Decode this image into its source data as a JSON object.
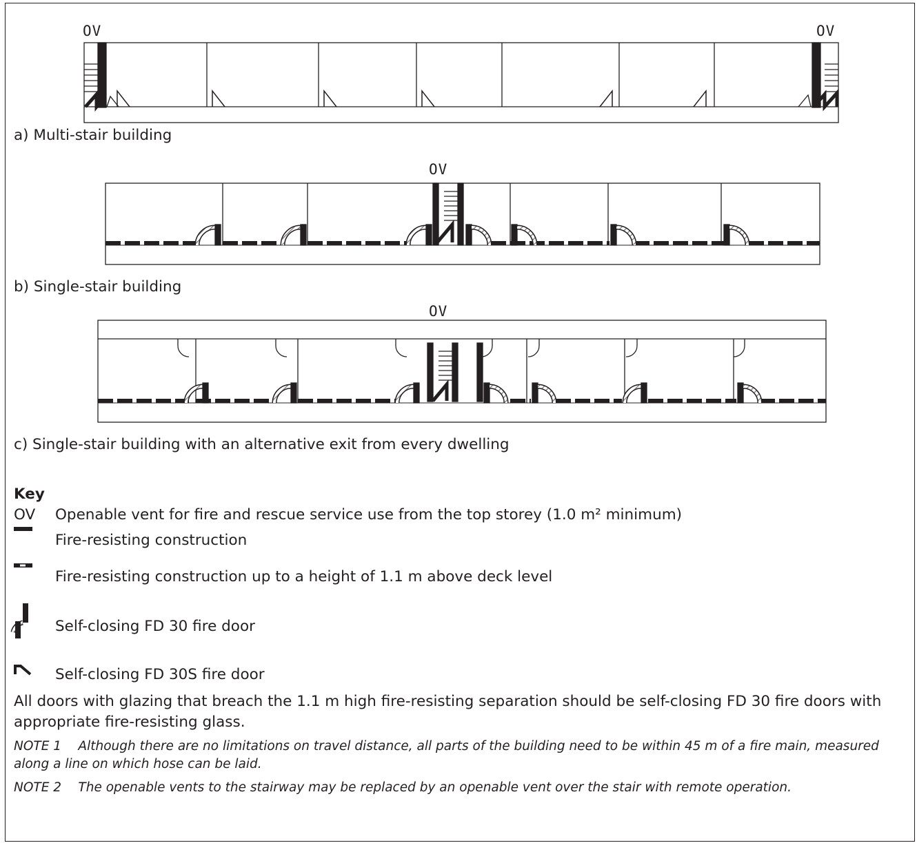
{
  "diagrams": {
    "a": {
      "caption": "a) Multi-stair building",
      "ov_left": "OV",
      "ov_right": "OV"
    },
    "b": {
      "caption": "b) Single-stair building",
      "ov": "OV"
    },
    "c": {
      "caption": "c) Single-stair building with an alternative exit from every dwelling",
      "ov": "OV"
    }
  },
  "key": {
    "title": "Key",
    "items": [
      {
        "symbol": "OV",
        "text": "Openable vent for fire and rescue service use from the top storey (1.0 m² minimum)"
      },
      {
        "symbol": "solid-bar",
        "text": "Fire-resisting construction"
      },
      {
        "symbol": "dashed-bar",
        "text": "Fire-resisting construction up to a height of 1.1 m above deck level"
      },
      {
        "symbol": "fd30-door",
        "text": "Self-closing FD 30 fire door"
      },
      {
        "symbol": "fd30s-door",
        "text": "Self-closing FD 30S fire door"
      }
    ]
  },
  "body_text": "All doors with glazing that breach the 1.1 m high fire-resisting separation should be self-closing FD 30 fire doors with appropriate fire-resisting glass.",
  "notes": [
    "NOTE 1  Although there are no limitations on travel distance, all parts of the building need to be within 45 m of a fire main, measured along a line on which hose can be laid.",
    "NOTE 2  The openable vents to the stairway may be replaced by an openable vent over the stair with remote operation."
  ],
  "colors": {
    "ink": "#231f20",
    "hatch": "#8a8a8a"
  }
}
